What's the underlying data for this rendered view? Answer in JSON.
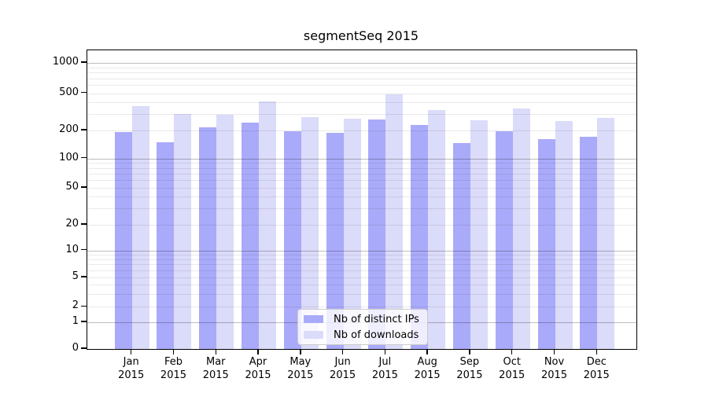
{
  "title": "segmentSeq 2015",
  "chart_data": {
    "type": "bar",
    "title": "segmentSeq 2015",
    "categories": [
      "Jan 2015",
      "Feb 2015",
      "Mar 2015",
      "Apr 2015",
      "May 2015",
      "Jun 2015",
      "Jul 2015",
      "Aug 2015",
      "Sep 2015",
      "Oct 2015",
      "Nov 2015",
      "Dec 2015"
    ],
    "series": [
      {
        "name": "Nb of distinct IPs",
        "color": "#aaaafa",
        "values": [
          192,
          149,
          215,
          242,
          195,
          187,
          262,
          231,
          146,
          196,
          160,
          172
        ]
      },
      {
        "name": "Nb of downloads",
        "color": "#dbdbfa",
        "values": [
          365,
          298,
          295,
          412,
          280,
          266,
          485,
          330,
          255,
          340,
          250,
          270
        ]
      }
    ],
    "yticks": [
      0,
      1,
      2,
      5,
      10,
      20,
      50,
      100,
      200,
      500,
      1000
    ],
    "yscale": "log, linear segment between 0 and 1",
    "xlabel": "",
    "ylabel": "",
    "grid": "horizontal major and minor log gridlines drawn over bars",
    "legend_position": "lower center inside plot",
    "colors": {
      "major_grid": "rgba(0,0,0,0.26)",
      "minor_grid": "rgba(0,0,0,0.085)",
      "axis": "#000000",
      "legend_border": "#cccccc"
    }
  }
}
